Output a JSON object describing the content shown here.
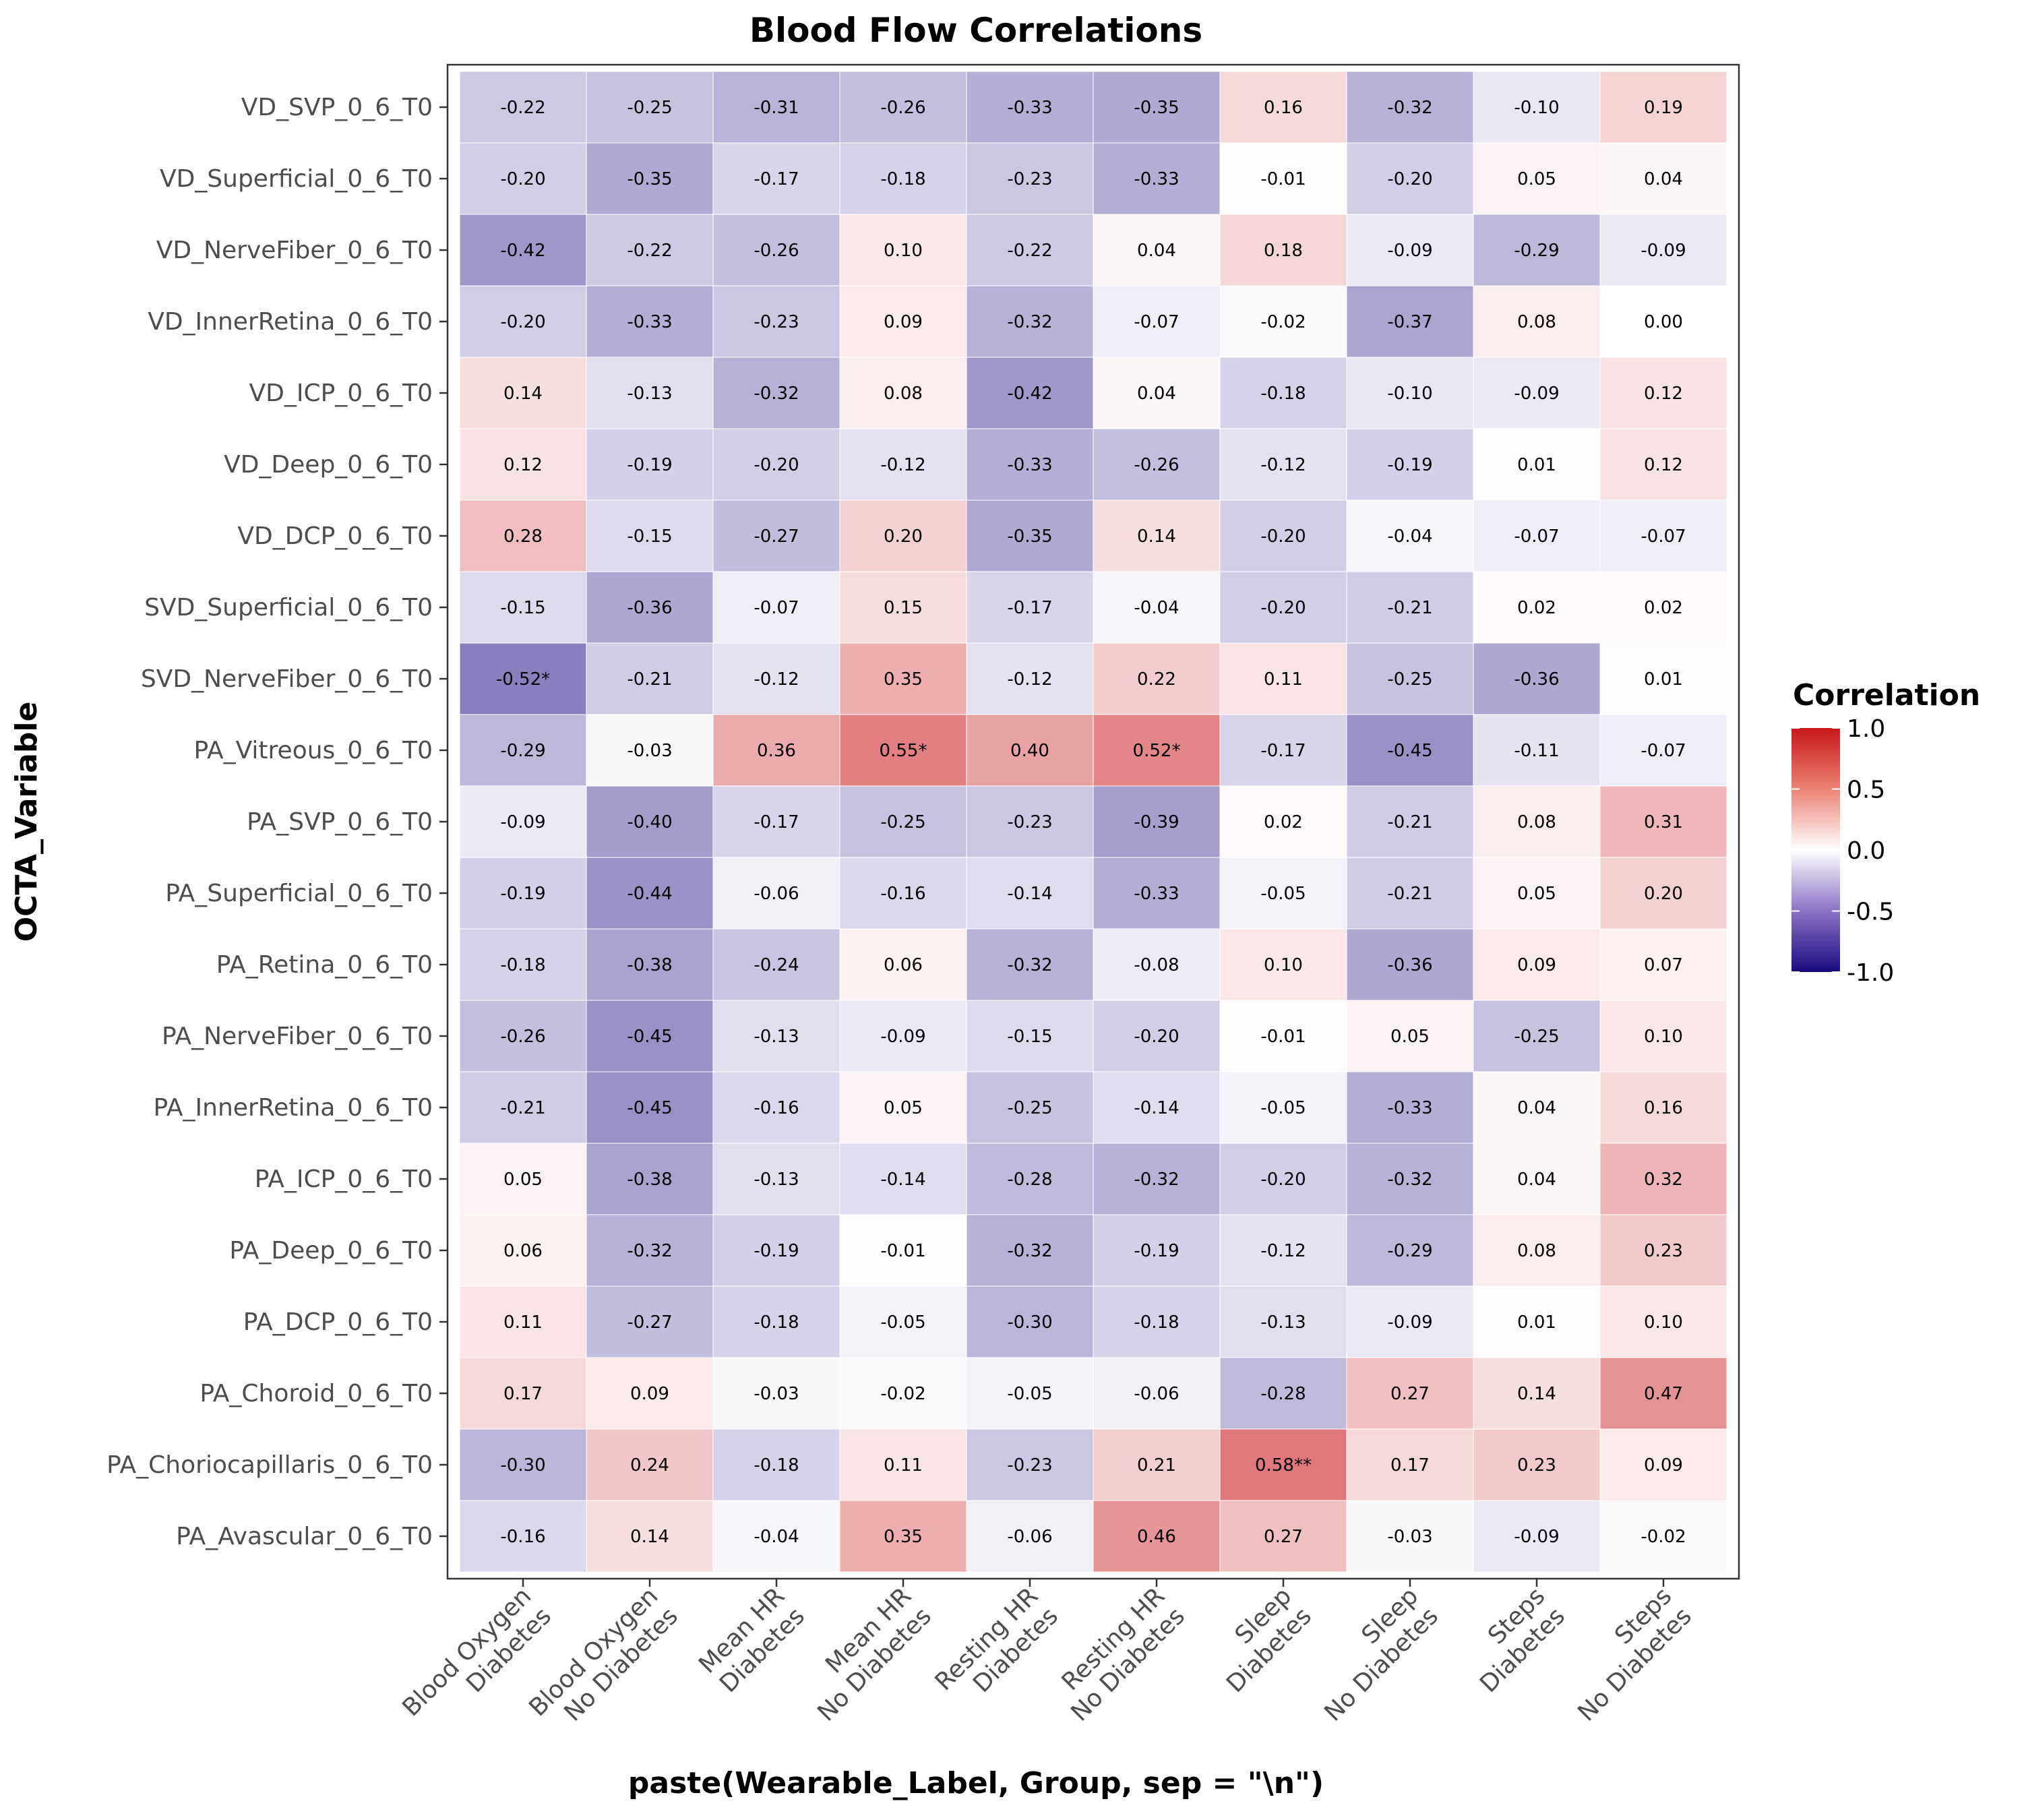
{
  "chart_data": {
    "type": "heatmap",
    "title": "Blood Flow Correlations",
    "xlabel": "paste(Wearable_Label, Group, sep = \"\\n\")",
    "ylabel": "OCTA_Variable",
    "x": [
      [
        "Blood Oxygen",
        "Diabetes"
      ],
      [
        "Blood Oxygen",
        "No Diabetes"
      ],
      [
        "Mean HR",
        "Diabetes"
      ],
      [
        "Mean HR",
        "No Diabetes"
      ],
      [
        "Resting HR",
        "Diabetes"
      ],
      [
        "Resting HR",
        "No Diabetes"
      ],
      [
        "Sleep",
        "Diabetes"
      ],
      [
        "Sleep",
        "No Diabetes"
      ],
      [
        "Steps",
        "Diabetes"
      ],
      [
        "Steps",
        "No Diabetes"
      ]
    ],
    "y": [
      "VD_SVP_0_6_T0",
      "VD_Superficial_0_6_T0",
      "VD_NerveFiber_0_6_T0",
      "VD_InnerRetina_0_6_T0",
      "VD_ICP_0_6_T0",
      "VD_Deep_0_6_T0",
      "VD_DCP_0_6_T0",
      "SVD_Superficial_0_6_T0",
      "SVD_NerveFiber_0_6_T0",
      "PA_Vitreous_0_6_T0",
      "PA_SVP_0_6_T0",
      "PA_Superficial_0_6_T0",
      "PA_Retina_0_6_T0",
      "PA_NerveFiber_0_6_T0",
      "PA_InnerRetina_0_6_T0",
      "PA_ICP_0_6_T0",
      "PA_Deep_0_6_T0",
      "PA_DCP_0_6_T0",
      "PA_Choroid_0_6_T0",
      "PA_Choriocapillaris_0_6_T0",
      "PA_Avascular_0_6_T0"
    ],
    "values": [
      [
        -0.22,
        -0.25,
        -0.31,
        -0.26,
        -0.33,
        -0.35,
        0.16,
        -0.32,
        -0.1,
        0.19
      ],
      [
        -0.2,
        -0.35,
        -0.17,
        -0.18,
        -0.23,
        -0.33,
        -0.01,
        -0.2,
        0.05,
        0.04
      ],
      [
        -0.42,
        -0.22,
        -0.26,
        0.1,
        -0.22,
        0.04,
        0.18,
        -0.09,
        -0.29,
        -0.09
      ],
      [
        -0.2,
        -0.33,
        -0.23,
        0.09,
        -0.32,
        -0.07,
        -0.02,
        -0.37,
        0.08,
        0.0
      ],
      [
        0.14,
        -0.13,
        -0.32,
        0.08,
        -0.42,
        0.04,
        -0.18,
        -0.1,
        -0.09,
        0.12
      ],
      [
        0.12,
        -0.19,
        -0.2,
        -0.12,
        -0.33,
        -0.26,
        -0.12,
        -0.19,
        0.01,
        0.12
      ],
      [
        0.28,
        -0.15,
        -0.27,
        0.2,
        -0.35,
        0.14,
        -0.2,
        -0.04,
        -0.07,
        -0.07
      ],
      [
        -0.15,
        -0.36,
        -0.07,
        0.15,
        -0.17,
        -0.04,
        -0.2,
        -0.21,
        0.02,
        0.02
      ],
      [
        -0.52,
        -0.21,
        -0.12,
        0.35,
        -0.12,
        0.22,
        0.11,
        -0.25,
        -0.36,
        0.01
      ],
      [
        -0.29,
        -0.03,
        0.36,
        0.55,
        0.4,
        0.52,
        -0.17,
        -0.45,
        -0.11,
        -0.07
      ],
      [
        -0.09,
        -0.4,
        -0.17,
        -0.25,
        -0.23,
        -0.39,
        0.02,
        -0.21,
        0.08,
        0.31
      ],
      [
        -0.19,
        -0.44,
        -0.06,
        -0.16,
        -0.14,
        -0.33,
        -0.05,
        -0.21,
        0.05,
        0.2
      ],
      [
        -0.18,
        -0.38,
        -0.24,
        0.06,
        -0.32,
        -0.08,
        0.1,
        -0.36,
        0.09,
        0.07
      ],
      [
        -0.26,
        -0.45,
        -0.13,
        -0.09,
        -0.15,
        -0.2,
        -0.01,
        0.05,
        -0.25,
        0.1
      ],
      [
        -0.21,
        -0.45,
        -0.16,
        0.05,
        -0.25,
        -0.14,
        -0.05,
        -0.33,
        0.04,
        0.16
      ],
      [
        0.05,
        -0.38,
        -0.13,
        -0.14,
        -0.28,
        -0.32,
        -0.2,
        -0.32,
        0.04,
        0.32
      ],
      [
        0.06,
        -0.32,
        -0.19,
        -0.01,
        -0.32,
        -0.19,
        -0.12,
        -0.29,
        0.08,
        0.23
      ],
      [
        0.11,
        -0.27,
        -0.18,
        -0.05,
        -0.3,
        -0.18,
        -0.13,
        -0.09,
        0.01,
        0.1
      ],
      [
        0.17,
        0.09,
        -0.03,
        -0.02,
        -0.05,
        -0.06,
        -0.28,
        0.27,
        0.14,
        0.47
      ],
      [
        -0.3,
        0.24,
        -0.18,
        0.11,
        -0.23,
        0.21,
        0.58,
        0.17,
        0.23,
        0.09
      ],
      [
        -0.16,
        0.14,
        -0.04,
        0.35,
        -0.06,
        0.46,
        0.27,
        -0.03,
        -0.09,
        -0.02
      ]
    ],
    "labels": [
      [
        "-0.22",
        "-0.25",
        "-0.31",
        "-0.26",
        "-0.33",
        "-0.35",
        "0.16",
        "-0.32",
        "-0.10",
        "0.19"
      ],
      [
        "-0.20",
        "-0.35",
        "-0.17",
        "-0.18",
        "-0.23",
        "-0.33",
        "-0.01",
        "-0.20",
        "0.05",
        "0.04"
      ],
      [
        "-0.42",
        "-0.22",
        "-0.26",
        "0.10",
        "-0.22",
        "0.04",
        "0.18",
        "-0.09",
        "-0.29",
        "-0.09"
      ],
      [
        "-0.20",
        "-0.33",
        "-0.23",
        "0.09",
        "-0.32",
        "-0.07",
        "-0.02",
        "-0.37",
        "0.08",
        "0.00"
      ],
      [
        "0.14",
        "-0.13",
        "-0.32",
        "0.08",
        "-0.42",
        "0.04",
        "-0.18",
        "-0.10",
        "-0.09",
        "0.12"
      ],
      [
        "0.12",
        "-0.19",
        "-0.20",
        "-0.12",
        "-0.33",
        "-0.26",
        "-0.12",
        "-0.19",
        "0.01",
        "0.12"
      ],
      [
        "0.28",
        "-0.15",
        "-0.27",
        "0.20",
        "-0.35",
        "0.14",
        "-0.20",
        "-0.04",
        "-0.07",
        "-0.07"
      ],
      [
        "-0.15",
        "-0.36",
        "-0.07",
        "0.15",
        "-0.17",
        "-0.04",
        "-0.20",
        "-0.21",
        "0.02",
        "0.02"
      ],
      [
        "-0.52*",
        "-0.21",
        "-0.12",
        "0.35",
        "-0.12",
        "0.22",
        "0.11",
        "-0.25",
        "-0.36",
        "0.01"
      ],
      [
        "-0.29",
        "-0.03",
        "0.36",
        "0.55*",
        "0.40",
        "0.52*",
        "-0.17",
        "-0.45",
        "-0.11",
        "-0.07"
      ],
      [
        "-0.09",
        "-0.40",
        "-0.17",
        "-0.25",
        "-0.23",
        "-0.39",
        "0.02",
        "-0.21",
        "0.08",
        "0.31"
      ],
      [
        "-0.19",
        "-0.44",
        "-0.06",
        "-0.16",
        "-0.14",
        "-0.33",
        "-0.05",
        "-0.21",
        "0.05",
        "0.20"
      ],
      [
        "-0.18",
        "-0.38",
        "-0.24",
        "0.06",
        "-0.32",
        "-0.08",
        "0.10",
        "-0.36",
        "0.09",
        "0.07"
      ],
      [
        "-0.26",
        "-0.45",
        "-0.13",
        "-0.09",
        "-0.15",
        "-0.20",
        "-0.01",
        "0.05",
        "-0.25",
        "0.10"
      ],
      [
        "-0.21",
        "-0.45",
        "-0.16",
        "0.05",
        "-0.25",
        "-0.14",
        "-0.05",
        "-0.33",
        "0.04",
        "0.16"
      ],
      [
        "0.05",
        "-0.38",
        "-0.13",
        "-0.14",
        "-0.28",
        "-0.32",
        "-0.20",
        "-0.32",
        "0.04",
        "0.32"
      ],
      [
        "0.06",
        "-0.32",
        "-0.19",
        "-0.01",
        "-0.32",
        "-0.19",
        "-0.12",
        "-0.29",
        "0.08",
        "0.23"
      ],
      [
        "0.11",
        "-0.27",
        "-0.18",
        "-0.05",
        "-0.30",
        "-0.18",
        "-0.13",
        "-0.09",
        "0.01",
        "0.10"
      ],
      [
        "0.17",
        "0.09",
        "-0.03",
        "-0.02",
        "-0.05",
        "-0.06",
        "-0.28",
        "0.27",
        "0.14",
        "0.47"
      ],
      [
        "-0.30",
        "0.24",
        "-0.18",
        "0.11",
        "-0.23",
        "0.21",
        "0.58**",
        "0.17",
        "0.23",
        "0.09"
      ],
      [
        "-0.16",
        "0.14",
        "-0.04",
        "0.35",
        "-0.06",
        "0.46",
        "0.27",
        "-0.03",
        "-0.09",
        "-0.02"
      ]
    ],
    "legend": {
      "title": "Correlation",
      "placement": "right",
      "range": [
        -1.0,
        1.0
      ],
      "ticks": [
        1.0,
        0.5,
        0.0,
        -0.5,
        -1.0
      ],
      "tick_labels": [
        "1.0",
        "0.5",
        "0.0",
        "-0.5",
        "-1.0"
      ]
    },
    "colors": {
      "low": "#1a0a80",
      "mid": "#ffffff",
      "high": "#c8171a"
    },
    "grid": false
  }
}
